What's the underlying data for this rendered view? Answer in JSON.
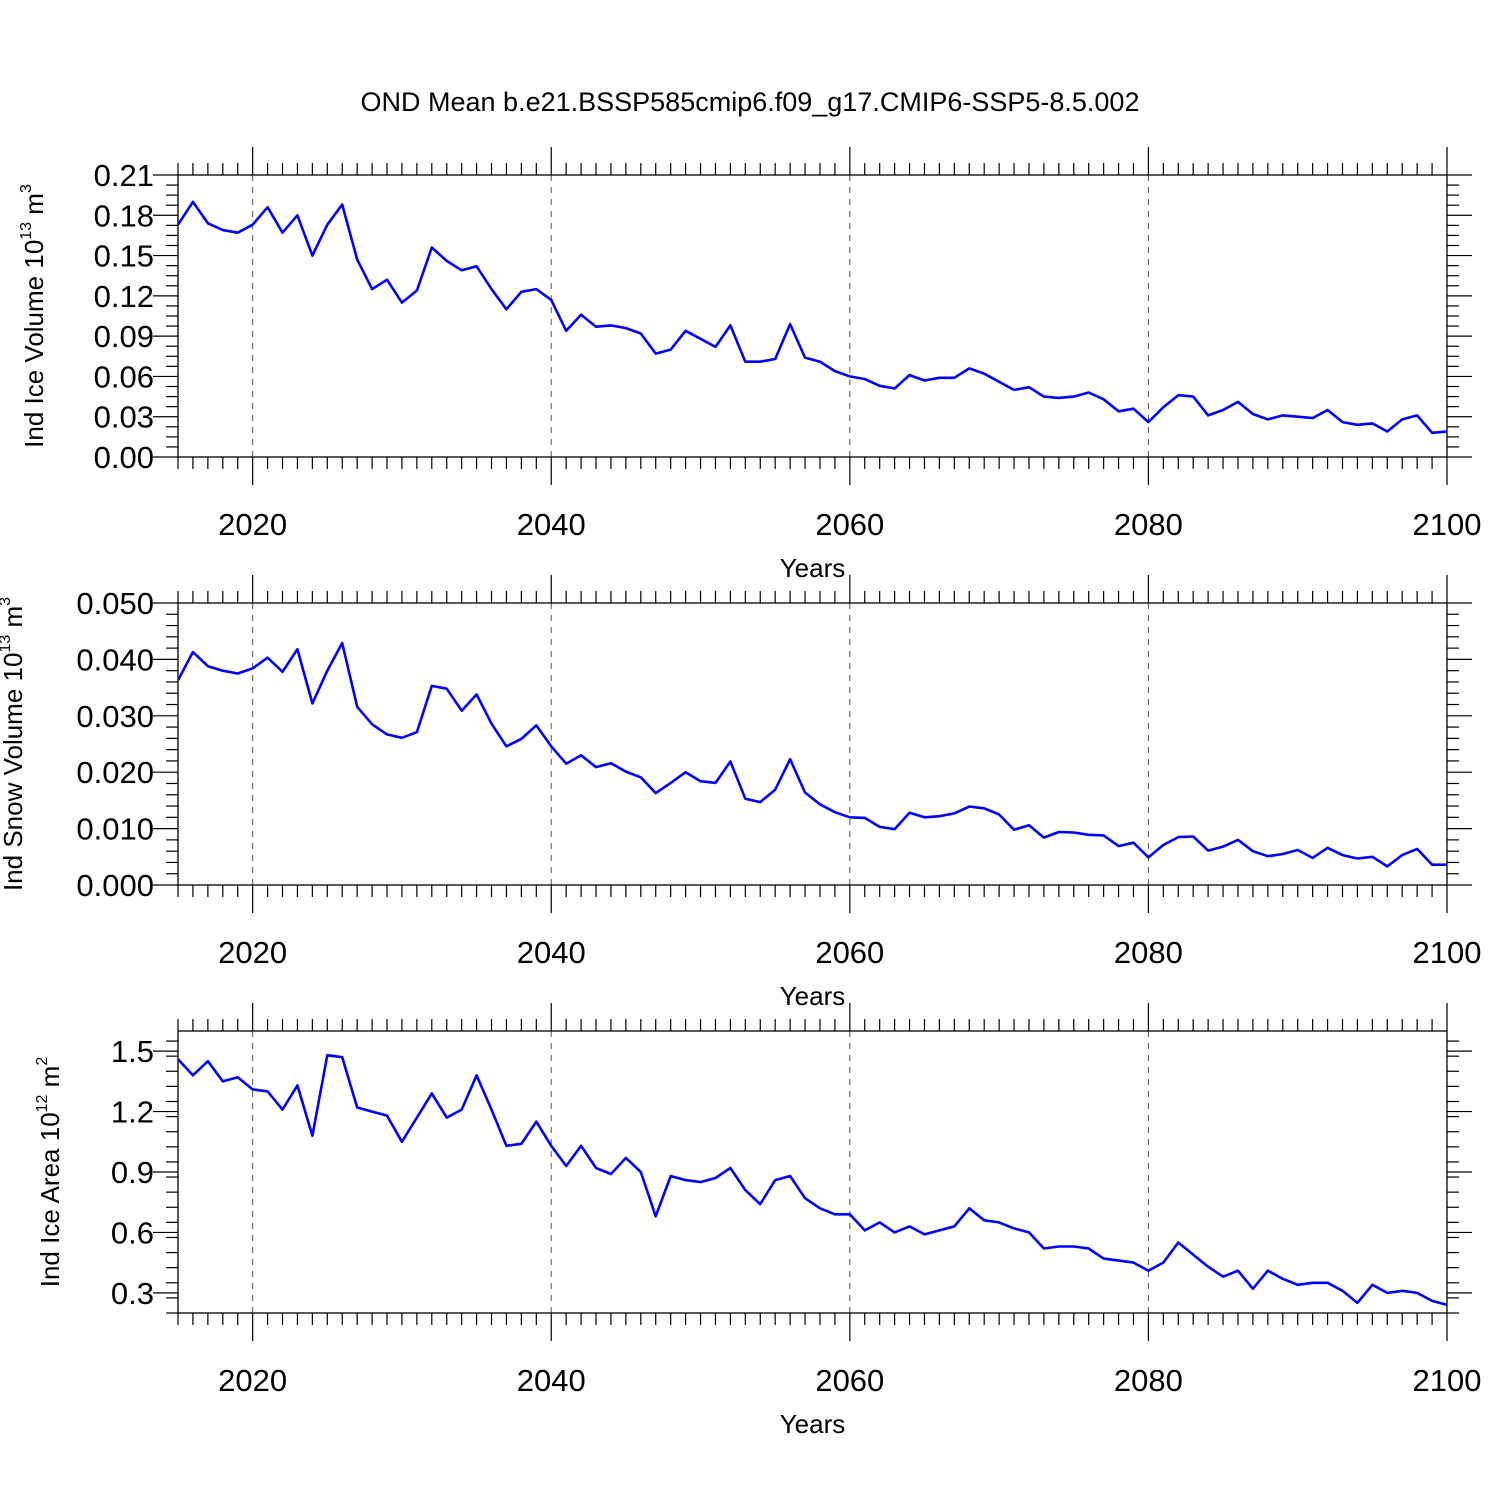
{
  "title": "OND Mean b.e21.BSSP585cmip6.f09_g17.CMIP6-SSP5-8.5.002",
  "colors": {
    "series": "#0000ff",
    "axes": "#000000"
  },
  "chart_data": [
    {
      "type": "line",
      "ylabel_main": "Ind Ice Volume 10",
      "ylabel_exp": "13",
      "ylabel_unit": " m",
      "ylabel_unit_exp": "3",
      "xlabel": "Years",
      "xlim": [
        2015,
        2100
      ],
      "ylim": [
        0.0,
        0.21
      ],
      "yticks": [
        0.0,
        0.03,
        0.06,
        0.09,
        0.12,
        0.15,
        0.18,
        0.21
      ],
      "ytick_labels": [
        "0.00",
        "0.03",
        "0.06",
        "0.09",
        "0.12",
        "0.15",
        "0.18",
        "0.21"
      ],
      "ytick_minor": 0.0075,
      "xticks": [
        2020,
        2040,
        2060,
        2080,
        2100
      ],
      "xtick_labels": [
        "2020",
        "2040",
        "2060",
        "2080",
        "2100"
      ],
      "grid": "dashed vertical at major x ticks",
      "x_start": 2015,
      "values": [
        0.173,
        0.19,
        0.174,
        0.169,
        0.167,
        0.173,
        0.186,
        0.167,
        0.18,
        0.15,
        0.173,
        0.188,
        0.147,
        0.125,
        0.132,
        0.115,
        0.124,
        0.156,
        0.146,
        0.139,
        0.142,
        0.125,
        0.11,
        0.123,
        0.125,
        0.117,
        0.094,
        0.106,
        0.097,
        0.098,
        0.096,
        0.092,
        0.077,
        0.08,
        0.094,
        0.088,
        0.082,
        0.098,
        0.071,
        0.071,
        0.073,
        0.099,
        0.074,
        0.071,
        0.064,
        0.06,
        0.058,
        0.053,
        0.051,
        0.061,
        0.057,
        0.059,
        0.059,
        0.066,
        0.062,
        0.056,
        0.05,
        0.052,
        0.045,
        0.044,
        0.045,
        0.048,
        0.043,
        0.034,
        0.036,
        0.026,
        0.037,
        0.046,
        0.045,
        0.031,
        0.035,
        0.041,
        0.032,
        0.028,
        0.031,
        0.03,
        0.029,
        0.035,
        0.026,
        0.024,
        0.025,
        0.019,
        0.028,
        0.031,
        0.018,
        0.019
      ]
    },
    {
      "type": "line",
      "ylabel_main": "Ind Snow Volume 10",
      "ylabel_exp": "13",
      "ylabel_unit": " m",
      "ylabel_unit_exp": "3",
      "xlabel": "Years",
      "xlim": [
        2015,
        2100
      ],
      "ylim": [
        0.0,
        0.05
      ],
      "yticks": [
        0.0,
        0.01,
        0.02,
        0.03,
        0.04,
        0.05
      ],
      "ytick_labels": [
        "0.000",
        "0.010",
        "0.020",
        "0.030",
        "0.040",
        "0.050"
      ],
      "ytick_minor": 0.002,
      "xticks": [
        2020,
        2040,
        2060,
        2080,
        2100
      ],
      "xtick_labels": [
        "2020",
        "2040",
        "2060",
        "2080",
        "2100"
      ],
      "grid": "dashed vertical at major x ticks",
      "x_start": 2015,
      "values": [
        0.0363,
        0.0413,
        0.0388,
        0.038,
        0.0375,
        0.0384,
        0.0403,
        0.0378,
        0.0418,
        0.0322,
        0.038,
        0.0429,
        0.0316,
        0.0285,
        0.0267,
        0.0261,
        0.0271,
        0.0353,
        0.0348,
        0.0309,
        0.0338,
        0.0286,
        0.0246,
        0.0259,
        0.0283,
        0.0246,
        0.0215,
        0.023,
        0.0209,
        0.0216,
        0.0201,
        0.0191,
        0.0163,
        0.0181,
        0.02,
        0.0184,
        0.0181,
        0.0219,
        0.0153,
        0.0147,
        0.0169,
        0.0223,
        0.0164,
        0.0143,
        0.0129,
        0.012,
        0.0119,
        0.0103,
        0.0099,
        0.0128,
        0.012,
        0.0122,
        0.0127,
        0.0139,
        0.0136,
        0.0125,
        0.0098,
        0.0106,
        0.0084,
        0.0094,
        0.0093,
        0.0089,
        0.0088,
        0.0069,
        0.0075,
        0.0049,
        0.0071,
        0.0085,
        0.0086,
        0.0061,
        0.0068,
        0.008,
        0.006,
        0.0051,
        0.0055,
        0.0062,
        0.0048,
        0.0066,
        0.0053,
        0.0047,
        0.005,
        0.0033,
        0.0053,
        0.0064,
        0.0036,
        0.0036
      ]
    },
    {
      "type": "line",
      "ylabel_main": "Ind Ice Area 10",
      "ylabel_exp": "12",
      "ylabel_unit": " m",
      "ylabel_unit_exp": "2",
      "xlabel": "Years",
      "xlim": [
        2015,
        2100
      ],
      "ylim": [
        0.2,
        1.6
      ],
      "yticks": [
        0.3,
        0.6,
        0.9,
        1.2,
        1.5
      ],
      "ytick_labels": [
        "0.3",
        "0.6",
        "0.9",
        "1.2",
        "1.5"
      ],
      "ytick_minor": 0.075,
      "xticks": [
        2020,
        2040,
        2060,
        2080,
        2100
      ],
      "xtick_labels": [
        "2020",
        "2040",
        "2060",
        "2080",
        "2100"
      ],
      "grid": "dashed vertical at major x ticks",
      "x_start": 2015,
      "values": [
        1.46,
        1.38,
        1.45,
        1.35,
        1.37,
        1.31,
        1.3,
        1.21,
        1.33,
        1.08,
        1.48,
        1.47,
        1.22,
        1.2,
        1.18,
        1.05,
        1.17,
        1.29,
        1.17,
        1.21,
        1.38,
        1.21,
        1.03,
        1.04,
        1.15,
        1.03,
        0.93,
        1.03,
        0.92,
        0.89,
        0.97,
        0.9,
        0.68,
        0.88,
        0.86,
        0.85,
        0.87,
        0.92,
        0.81,
        0.74,
        0.86,
        0.88,
        0.77,
        0.72,
        0.69,
        0.69,
        0.61,
        0.65,
        0.6,
        0.63,
        0.59,
        0.61,
        0.63,
        0.72,
        0.66,
        0.65,
        0.62,
        0.6,
        0.52,
        0.53,
        0.53,
        0.52,
        0.47,
        0.46,
        0.45,
        0.41,
        0.45,
        0.55,
        0.49,
        0.43,
        0.38,
        0.41,
        0.32,
        0.41,
        0.37,
        0.34,
        0.35,
        0.35,
        0.31,
        0.25,
        0.34,
        0.3,
        0.31,
        0.3,
        0.26,
        0.24
      ]
    }
  ]
}
